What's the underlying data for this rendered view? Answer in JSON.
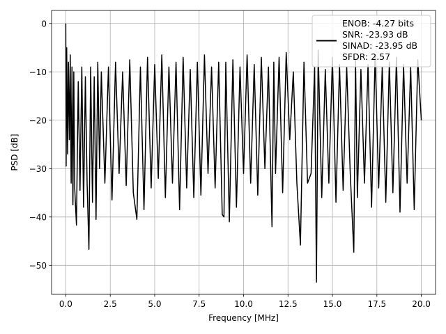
{
  "chart_data": {
    "type": "line",
    "title": "",
    "xlabel": "Frequency [MHz]",
    "ylabel": "PSD [dB]",
    "xlim": [
      -0.8,
      20.8
    ],
    "ylim": [
      -56,
      2.7
    ],
    "xticks": [
      0.0,
      2.5,
      5.0,
      7.5,
      10.0,
      12.5,
      15.0,
      17.5,
      20.0
    ],
    "xtick_labels": [
      "0.0",
      "2.5",
      "5.0",
      "7.5",
      "10.0",
      "12.5",
      "15.0",
      "17.5",
      "20.0"
    ],
    "yticks": [
      0,
      -10,
      -20,
      -30,
      -40,
      -50
    ],
    "ytick_labels": [
      "0",
      "−10",
      "−20",
      "−30",
      "−40",
      "−50"
    ],
    "grid": true,
    "legend_position": "top-right",
    "legend_entries": [
      "ENOB: -4.27 bits",
      "SNR: -23.93 dB",
      "SINAD: -23.95 dB",
      "SFDR: 2.57"
    ],
    "series_color": "#000000",
    "series": [
      {
        "x": [
          0.0,
          0.02,
          0.05,
          0.1,
          0.15,
          0.2,
          0.25,
          0.3,
          0.35,
          0.4,
          0.45,
          0.5,
          0.6,
          0.7,
          0.8,
          0.9,
          1.0,
          1.1,
          1.2,
          1.3,
          1.4,
          1.5,
          1.6,
          1.7,
          1.8,
          1.9,
          2.0,
          2.2,
          2.4,
          2.6,
          2.8,
          3.0,
          3.2,
          3.4,
          3.6,
          3.8,
          4.0,
          4.2,
          4.4,
          4.6,
          4.8,
          5.0,
          5.2,
          5.4,
          5.6,
          5.8,
          6.0,
          6.2,
          6.4,
          6.6,
          6.8,
          7.0,
          7.2,
          7.4,
          7.6,
          7.8,
          8.0,
          8.2,
          8.4,
          8.6,
          8.8,
          8.9,
          9.0,
          9.2,
          9.4,
          9.6,
          9.8,
          10.0,
          10.2,
          10.4,
          10.6,
          10.8,
          11.0,
          11.2,
          11.4,
          11.6,
          11.7,
          11.8,
          12.0,
          12.2,
          12.4,
          12.6,
          12.8,
          13.0,
          13.2,
          13.4,
          13.6,
          13.8,
          14.0,
          14.1,
          14.2,
          14.4,
          14.6,
          14.8,
          15.0,
          15.2,
          15.4,
          15.6,
          15.8,
          16.0,
          16.2,
          16.3,
          16.4,
          16.6,
          16.8,
          17.0,
          17.2,
          17.4,
          17.6,
          17.8,
          18.0,
          18.2,
          18.4,
          18.6,
          18.8,
          19.0,
          19.2,
          19.4,
          19.6,
          19.8,
          20.0
        ],
        "y": [
          0.0,
          -29.5,
          -5.0,
          -27.0,
          -8.0,
          -24.0,
          -6.5,
          -33.0,
          -9.0,
          -37.5,
          -10.0,
          -34.0,
          -41.7,
          -12.0,
          -34.5,
          -9.0,
          -38.0,
          -11.0,
          -33.0,
          -46.7,
          -9.0,
          -37.0,
          -11.0,
          -40.5,
          -8.0,
          -30.0,
          -10.0,
          -33.0,
          -9.0,
          -36.5,
          -8.0,
          -31.0,
          -10.0,
          -33.5,
          -7.5,
          -35.0,
          -40.5,
          -9.0,
          -38.5,
          -7.0,
          -34.0,
          -8.5,
          -32.0,
          -6.5,
          -36.0,
          -9.0,
          -33.0,
          -8.0,
          -38.5,
          -7.0,
          -34.0,
          -9.5,
          -36.0,
          -8.0,
          -35.5,
          -6.5,
          -31.0,
          -9.0,
          -34.0,
          -8.0,
          -39.5,
          -40.0,
          -8.0,
          -41.0,
          -7.5,
          -38.0,
          -9.0,
          -31.0,
          -6.5,
          -33.0,
          -8.5,
          -35.5,
          -7.0,
          -30.0,
          -9.0,
          -42.0,
          -8.0,
          -31.0,
          -7.0,
          -35.0,
          -6.0,
          -24.0,
          -10.0,
          -33.0,
          -45.8,
          -8.0,
          -33.0,
          -31.0,
          -9.0,
          -53.5,
          -5.5,
          -36.0,
          -9.5,
          -33.0,
          -7.0,
          -37.0,
          -8.5,
          -34.5,
          -9.0,
          -31.0,
          -47.3,
          -7.5,
          -36.0,
          -9.5,
          -33.0,
          -8.5,
          -38.0,
          -6.5,
          -34.0,
          -9.0,
          -37.0,
          -8.0,
          -35.0,
          -7.0,
          -39.0,
          -8.5,
          -33.0,
          -9.0,
          -38.5,
          -7.5,
          -20.0
        ]
      }
    ]
  }
}
